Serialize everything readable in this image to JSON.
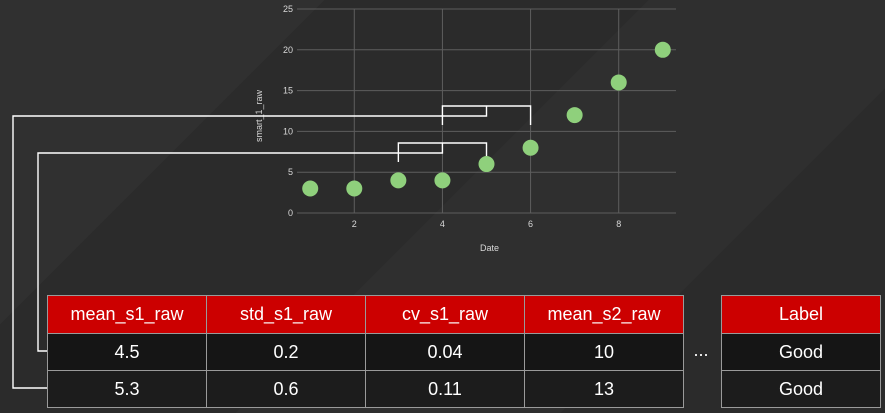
{
  "chart_data": {
    "type": "scatter",
    "xlabel": "Date",
    "ylabel": "smart_1_raw",
    "xlim": [
      0.7,
      9.3
    ],
    "ylim": [
      0,
      25
    ],
    "xticks": [
      2,
      4,
      6,
      8
    ],
    "yticks": [
      0,
      5,
      10,
      15,
      20,
      25
    ],
    "grid": true,
    "point_color": "#8fd07c",
    "x": [
      1,
      2,
      3,
      4,
      5,
      6,
      7,
      8,
      9
    ],
    "y": [
      3,
      3,
      4,
      4,
      6,
      8,
      12,
      16,
      20
    ],
    "windows": [
      {
        "x_start": 3,
        "x_end": 5,
        "links_to_row": 0
      },
      {
        "x_start": 4,
        "x_end": 6,
        "links_to_row": 1
      }
    ]
  },
  "feature_table": {
    "headers": [
      "mean_s1_raw",
      "std_s1_raw",
      "cv_s1_raw",
      "mean_s2_raw"
    ],
    "rows": [
      [
        "4.5",
        "0.2",
        "0.04",
        "10"
      ],
      [
        "5.3",
        "0.6",
        "0.11",
        "13"
      ]
    ]
  },
  "ellipsis": "...",
  "label_table": {
    "header": "Label",
    "rows": [
      "Good",
      "Good"
    ]
  },
  "colors": {
    "header_red": "#cc0000",
    "background": "#2b2b2b",
    "point_green": "#8fd07c"
  }
}
